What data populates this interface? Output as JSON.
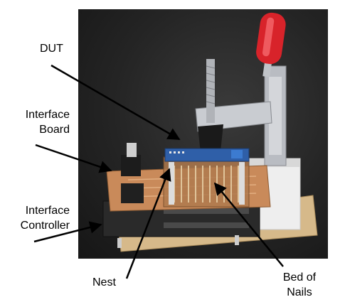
{
  "labels": {
    "dut": "DUT",
    "interface_board_line1": "Interface",
    "interface_board_line2": "Board",
    "interface_controller_line1": "Interface",
    "interface_controller_line2": "Controller",
    "nest": "Nest",
    "bed_of_nails_line1": "Bed of",
    "bed_of_nails_line2": "Nails"
  },
  "colors": {
    "background": "#ffffff",
    "photo_background": "#242424",
    "pcb_copper": "#c98a5a",
    "clamp_handle": "#d8232a",
    "clamp_metal": "#b9bcc2",
    "arrow": "#000000",
    "label_text": "#000000"
  }
}
